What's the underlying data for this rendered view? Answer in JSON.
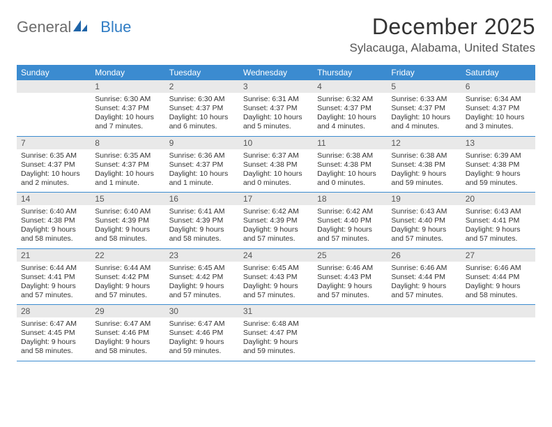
{
  "logo": {
    "text1": "General",
    "text2": "Blue"
  },
  "title": "December 2025",
  "subtitle": "Sylacauga, Alabama, United States",
  "colors": {
    "header_bg": "#3b8bd0",
    "daynum_bg": "#e9e9e9",
    "week_border": "#3b8bd0",
    "text": "#333333",
    "logo_gray": "#6c6c6c",
    "logo_blue": "#2f7cc4"
  },
  "weekdays": [
    "Sunday",
    "Monday",
    "Tuesday",
    "Wednesday",
    "Thursday",
    "Friday",
    "Saturday"
  ],
  "weeks": [
    [
      {
        "day": "",
        "sunrise": "",
        "sunset": "",
        "daylight": ""
      },
      {
        "day": "1",
        "sunrise": "Sunrise: 6:30 AM",
        "sunset": "Sunset: 4:37 PM",
        "daylight": "Daylight: 10 hours and 7 minutes."
      },
      {
        "day": "2",
        "sunrise": "Sunrise: 6:30 AM",
        "sunset": "Sunset: 4:37 PM",
        "daylight": "Daylight: 10 hours and 6 minutes."
      },
      {
        "day": "3",
        "sunrise": "Sunrise: 6:31 AM",
        "sunset": "Sunset: 4:37 PM",
        "daylight": "Daylight: 10 hours and 5 minutes."
      },
      {
        "day": "4",
        "sunrise": "Sunrise: 6:32 AM",
        "sunset": "Sunset: 4:37 PM",
        "daylight": "Daylight: 10 hours and 4 minutes."
      },
      {
        "day": "5",
        "sunrise": "Sunrise: 6:33 AM",
        "sunset": "Sunset: 4:37 PM",
        "daylight": "Daylight: 10 hours and 4 minutes."
      },
      {
        "day": "6",
        "sunrise": "Sunrise: 6:34 AM",
        "sunset": "Sunset: 4:37 PM",
        "daylight": "Daylight: 10 hours and 3 minutes."
      }
    ],
    [
      {
        "day": "7",
        "sunrise": "Sunrise: 6:35 AM",
        "sunset": "Sunset: 4:37 PM",
        "daylight": "Daylight: 10 hours and 2 minutes."
      },
      {
        "day": "8",
        "sunrise": "Sunrise: 6:35 AM",
        "sunset": "Sunset: 4:37 PM",
        "daylight": "Daylight: 10 hours and 1 minute."
      },
      {
        "day": "9",
        "sunrise": "Sunrise: 6:36 AM",
        "sunset": "Sunset: 4:37 PM",
        "daylight": "Daylight: 10 hours and 1 minute."
      },
      {
        "day": "10",
        "sunrise": "Sunrise: 6:37 AM",
        "sunset": "Sunset: 4:38 PM",
        "daylight": "Daylight: 10 hours and 0 minutes."
      },
      {
        "day": "11",
        "sunrise": "Sunrise: 6:38 AM",
        "sunset": "Sunset: 4:38 PM",
        "daylight": "Daylight: 10 hours and 0 minutes."
      },
      {
        "day": "12",
        "sunrise": "Sunrise: 6:38 AM",
        "sunset": "Sunset: 4:38 PM",
        "daylight": "Daylight: 9 hours and 59 minutes."
      },
      {
        "day": "13",
        "sunrise": "Sunrise: 6:39 AM",
        "sunset": "Sunset: 4:38 PM",
        "daylight": "Daylight: 9 hours and 59 minutes."
      }
    ],
    [
      {
        "day": "14",
        "sunrise": "Sunrise: 6:40 AM",
        "sunset": "Sunset: 4:38 PM",
        "daylight": "Daylight: 9 hours and 58 minutes."
      },
      {
        "day": "15",
        "sunrise": "Sunrise: 6:40 AM",
        "sunset": "Sunset: 4:39 PM",
        "daylight": "Daylight: 9 hours and 58 minutes."
      },
      {
        "day": "16",
        "sunrise": "Sunrise: 6:41 AM",
        "sunset": "Sunset: 4:39 PM",
        "daylight": "Daylight: 9 hours and 58 minutes."
      },
      {
        "day": "17",
        "sunrise": "Sunrise: 6:42 AM",
        "sunset": "Sunset: 4:39 PM",
        "daylight": "Daylight: 9 hours and 57 minutes."
      },
      {
        "day": "18",
        "sunrise": "Sunrise: 6:42 AM",
        "sunset": "Sunset: 4:40 PM",
        "daylight": "Daylight: 9 hours and 57 minutes."
      },
      {
        "day": "19",
        "sunrise": "Sunrise: 6:43 AM",
        "sunset": "Sunset: 4:40 PM",
        "daylight": "Daylight: 9 hours and 57 minutes."
      },
      {
        "day": "20",
        "sunrise": "Sunrise: 6:43 AM",
        "sunset": "Sunset: 4:41 PM",
        "daylight": "Daylight: 9 hours and 57 minutes."
      }
    ],
    [
      {
        "day": "21",
        "sunrise": "Sunrise: 6:44 AM",
        "sunset": "Sunset: 4:41 PM",
        "daylight": "Daylight: 9 hours and 57 minutes."
      },
      {
        "day": "22",
        "sunrise": "Sunrise: 6:44 AM",
        "sunset": "Sunset: 4:42 PM",
        "daylight": "Daylight: 9 hours and 57 minutes."
      },
      {
        "day": "23",
        "sunrise": "Sunrise: 6:45 AM",
        "sunset": "Sunset: 4:42 PM",
        "daylight": "Daylight: 9 hours and 57 minutes."
      },
      {
        "day": "24",
        "sunrise": "Sunrise: 6:45 AM",
        "sunset": "Sunset: 4:43 PM",
        "daylight": "Daylight: 9 hours and 57 minutes."
      },
      {
        "day": "25",
        "sunrise": "Sunrise: 6:46 AM",
        "sunset": "Sunset: 4:43 PM",
        "daylight": "Daylight: 9 hours and 57 minutes."
      },
      {
        "day": "26",
        "sunrise": "Sunrise: 6:46 AM",
        "sunset": "Sunset: 4:44 PM",
        "daylight": "Daylight: 9 hours and 57 minutes."
      },
      {
        "day": "27",
        "sunrise": "Sunrise: 6:46 AM",
        "sunset": "Sunset: 4:44 PM",
        "daylight": "Daylight: 9 hours and 58 minutes."
      }
    ],
    [
      {
        "day": "28",
        "sunrise": "Sunrise: 6:47 AM",
        "sunset": "Sunset: 4:45 PM",
        "daylight": "Daylight: 9 hours and 58 minutes."
      },
      {
        "day": "29",
        "sunrise": "Sunrise: 6:47 AM",
        "sunset": "Sunset: 4:46 PM",
        "daylight": "Daylight: 9 hours and 58 minutes."
      },
      {
        "day": "30",
        "sunrise": "Sunrise: 6:47 AM",
        "sunset": "Sunset: 4:46 PM",
        "daylight": "Daylight: 9 hours and 59 minutes."
      },
      {
        "day": "31",
        "sunrise": "Sunrise: 6:48 AM",
        "sunset": "Sunset: 4:47 PM",
        "daylight": "Daylight: 9 hours and 59 minutes."
      },
      {
        "day": "",
        "sunrise": "",
        "sunset": "",
        "daylight": ""
      },
      {
        "day": "",
        "sunrise": "",
        "sunset": "",
        "daylight": ""
      },
      {
        "day": "",
        "sunrise": "",
        "sunset": "",
        "daylight": ""
      }
    ]
  ]
}
